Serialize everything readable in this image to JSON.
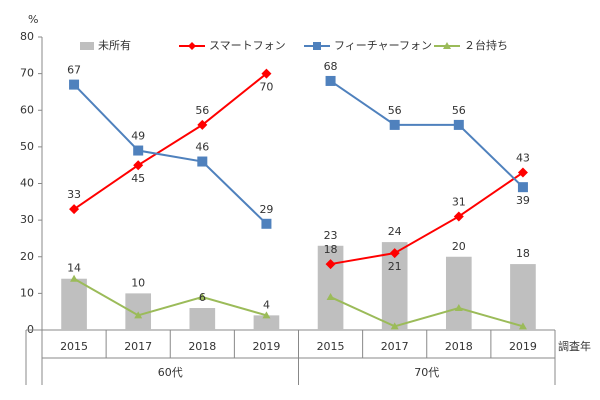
{
  "chart_data": {
    "type": "bar-line",
    "y_unit": "%",
    "x_label": "調査年",
    "category_groups": [
      {
        "name": "60代",
        "categories": [
          "2015",
          "2017",
          "2018",
          "2019"
        ]
      },
      {
        "name": "70代",
        "categories": [
          "2015",
          "2017",
          "2018",
          "2019"
        ]
      }
    ],
    "series": [
      {
        "name": "未所有",
        "type": "bar",
        "color": "#bfbfbf",
        "values": [
          14,
          10,
          6,
          4,
          23,
          24,
          20,
          18
        ]
      },
      {
        "name": "スマートフォン",
        "type": "line",
        "marker": "diamond",
        "color": "#ff0000",
        "values": [
          33,
          45,
          56,
          70,
          18,
          21,
          31,
          43
        ]
      },
      {
        "name": "フィーチャーフォン",
        "type": "line",
        "marker": "square",
        "color": "#4f81bd",
        "values": [
          67,
          49,
          46,
          29,
          68,
          56,
          56,
          39
        ]
      },
      {
        "name": "２台持ち",
        "type": "line",
        "marker": "triangle",
        "color": "#9bbb59",
        "values": [
          14,
          4,
          9,
          4,
          9,
          1,
          6,
          1
        ]
      }
    ],
    "labeled_series": [
      0,
      1,
      2
    ],
    "ylim": [
      0,
      80
    ],
    "yticks": [
      0,
      10,
      20,
      30,
      40,
      50,
      60,
      70,
      80
    ],
    "grid": false
  }
}
